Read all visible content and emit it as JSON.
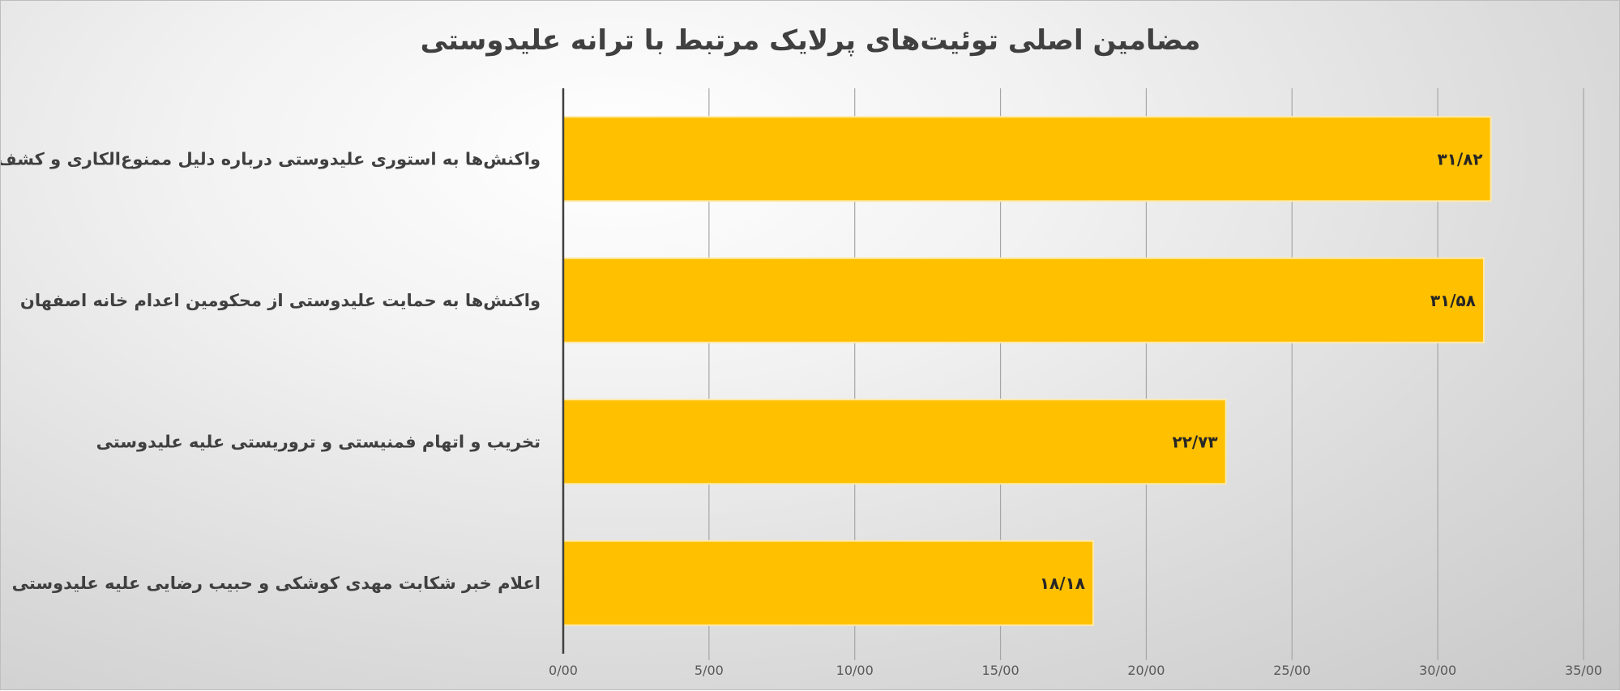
{
  "chart_data": {
    "type": "bar",
    "orientation": "horizontal",
    "title": "مضامین اصلی توئیت‌های پرلایک مرتبط با ترانه علیدوستی",
    "categories": [
      "واکنش‌ها به  استوری علیدوستی درباره دلیل ممنوع‌الکاری و کشف حجاب",
      "واکنش‌ها به حمایت علیدوستی از محکومین اعدام خانه اصفهان",
      "تخریب و اتهام فمنیستی و تروریستی علیه علیدوستی",
      "اعلام خبر شکابت مهدی کوشکی و حبیب رضایی علیه علیدوستی"
    ],
    "values": [
      31.82,
      31.58,
      22.73,
      18.18
    ],
    "data_labels": [
      "۳۱/۸۲",
      "۳۱/۵۸",
      "۲۲/۷۳",
      "۱۸/۱۸"
    ],
    "x_ticks": [
      "0/00",
      "5/00",
      "10/00",
      "15/00",
      "20/00",
      "25/00",
      "30/00",
      "35/00"
    ],
    "xlim": [
      0,
      35
    ],
    "grid": true,
    "bar_color": "#FFC000",
    "grid_color": "#A6A6A6",
    "axis_color": "#404040",
    "xlabel": "",
    "ylabel": ""
  }
}
